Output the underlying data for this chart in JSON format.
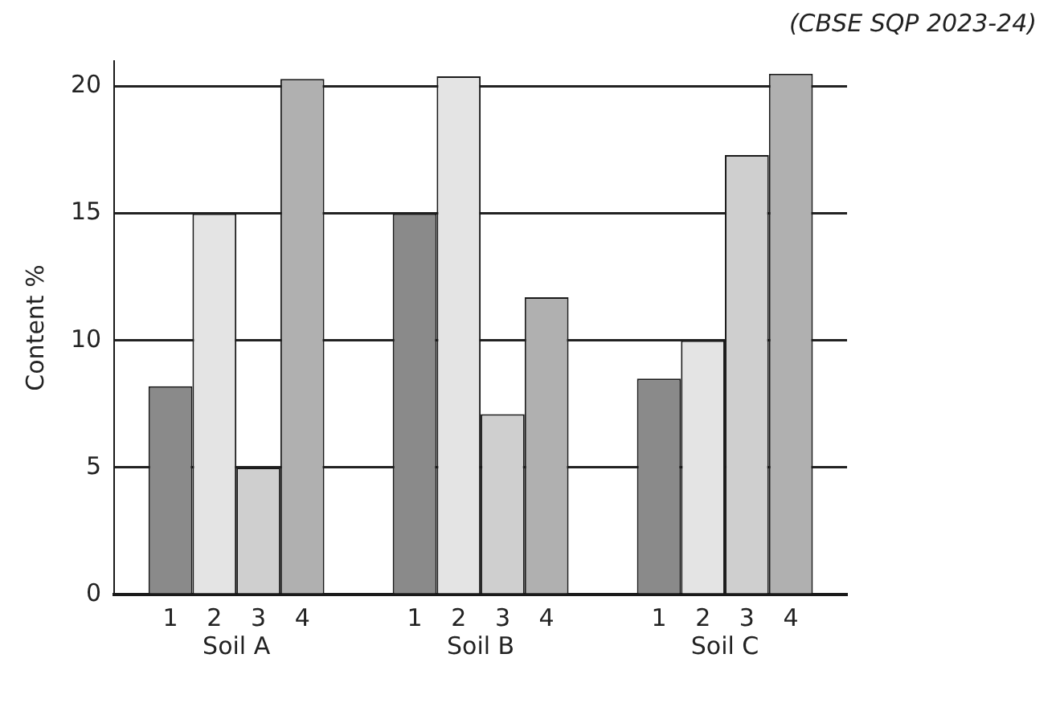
{
  "chart_data": {
    "type": "bar",
    "ylabel": "Content %",
    "annotations": [
      "(CBSE SQP 2023-24)"
    ],
    "categories": [
      "Soil A",
      "Soil B",
      "Soil C"
    ],
    "series": [
      {
        "name": "1",
        "color": "#8a8a8a",
        "values": [
          8.2,
          15,
          8.5
        ]
      },
      {
        "name": "2",
        "color": "#e4e4e4",
        "values": [
          15,
          20.4,
          10
        ]
      },
      {
        "name": "3",
        "color": "#cfcfcf",
        "values": [
          5,
          7.1,
          17.3
        ]
      },
      {
        "name": "4",
        "color": "#b0b0b0",
        "values": [
          20.3,
          11.7,
          20.5
        ]
      }
    ],
    "ylim": [
      0,
      21
    ],
    "yticks": [
      0,
      5,
      10,
      15,
      20
    ],
    "grid": "y",
    "legend": false
  }
}
